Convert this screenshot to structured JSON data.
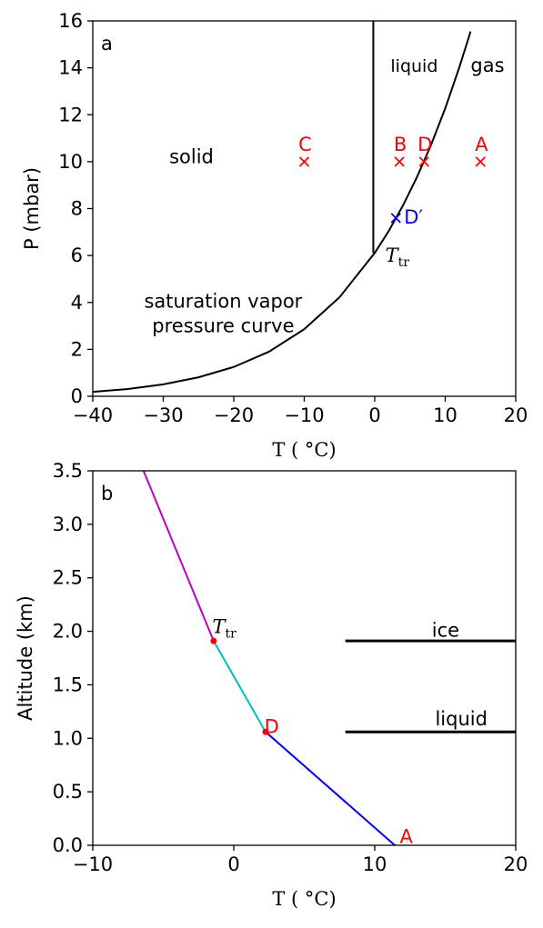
{
  "colors": {
    "red": "#ff0000",
    "blue": "#0000ff",
    "magenta": "#bf00bf",
    "cyan": "#00bfbf",
    "black": "#000000"
  },
  "chart_data": [
    {
      "type": "line",
      "panel_tag": "a",
      "xlabel": "T ( °C)",
      "ylabel": "P (mbar)",
      "xlim": [
        -40,
        20
      ],
      "ylim": [
        0,
        16
      ],
      "xticks": [
        "−40",
        "−30",
        "−20",
        "−10",
        "0",
        "10",
        "20"
      ],
      "yticks": [
        "0",
        "2",
        "4",
        "6",
        "8",
        "10",
        "12",
        "14",
        "16"
      ],
      "grid": false,
      "saturation_curve": {
        "x": [
          -40,
          -35,
          -30,
          -25,
          -20,
          -15,
          -10,
          -5,
          0,
          2,
          4,
          6,
          8,
          10,
          12,
          13.6
        ],
        "y": [
          0.19,
          0.31,
          0.51,
          0.81,
          1.25,
          1.9,
          2.86,
          4.22,
          6.11,
          7.05,
          8.13,
          9.35,
          10.72,
          12.27,
          14.02,
          15.55
        ]
      },
      "melting_line": {
        "x": [
          -0.2,
          -0.2
        ],
        "y": [
          6.11,
          16
        ]
      },
      "region_labels": [
        {
          "text": "solid",
          "x": -26,
          "y": 10.2
        },
        {
          "text": "liquid",
          "x": 5.6,
          "y": 14.1
        },
        {
          "text": "gas",
          "x": 16,
          "y": 14.1
        },
        {
          "text": "saturation vapor",
          "x": -21.5,
          "y": 4.05
        },
        {
          "text": "pressure curve",
          "x": -21.5,
          "y": 3.0
        }
      ],
      "triple_point_label": {
        "text": "T",
        "sub": "tr",
        "x": 1.5,
        "y": 6.0
      },
      "points": [
        {
          "label": "C",
          "x": -10,
          "y": 10,
          "color": "red"
        },
        {
          "label": "B",
          "x": 3.5,
          "y": 10,
          "color": "red"
        },
        {
          "label": "D",
          "x": 7,
          "y": 10,
          "color": "red"
        },
        {
          "label": "A",
          "x": 15,
          "y": 10,
          "color": "red"
        },
        {
          "label": "D′",
          "x": 3,
          "y": 7.6,
          "color": "blue"
        }
      ]
    },
    {
      "type": "line",
      "panel_tag": "b",
      "xlabel": "T ( °C)",
      "ylabel": "Altitude (km)",
      "xlim": [
        -10,
        25
      ],
      "ylim": [
        0,
        3.5
      ],
      "xticks": [
        "−10",
        "0",
        "10",
        "20"
      ],
      "yticks": [
        "0.0",
        "0.5",
        "1.0",
        "1.5",
        "2.0",
        "2.5",
        "3.0",
        "3.5"
      ],
      "grid": false,
      "series": [
        {
          "color": "blue",
          "x": [
            15,
            4.3
          ],
          "y": [
            0,
            1.06
          ]
        },
        {
          "color": "cyan",
          "x": [
            4.3,
            0
          ],
          "y": [
            1.06,
            1.91
          ]
        },
        {
          "color": "magenta",
          "x": [
            0,
            -5.8
          ],
          "y": [
            1.91,
            3.5
          ]
        }
      ],
      "levels": [
        {
          "label": "ice",
          "x": [
            10.9,
            25
          ],
          "y": 1.91,
          "label_x": 19.2,
          "label_y": 2.01
        },
        {
          "label": "liquid",
          "x": [
            10.9,
            25
          ],
          "y": 1.06,
          "label_x": 20.5,
          "label_y": 1.18
        }
      ],
      "markers": [
        {
          "x": 0,
          "y": 1.91
        },
        {
          "x": 4.3,
          "y": 1.06
        }
      ],
      "annotations": [
        {
          "text": "T",
          "sub": "tr",
          "x": -0.1,
          "y": 2.0,
          "style": "math"
        },
        {
          "text": "D",
          "x": 4.2,
          "y": 1.11,
          "color": "red"
        },
        {
          "text": "A",
          "x": 15.4,
          "y": 0.08,
          "color": "red"
        }
      ]
    }
  ]
}
